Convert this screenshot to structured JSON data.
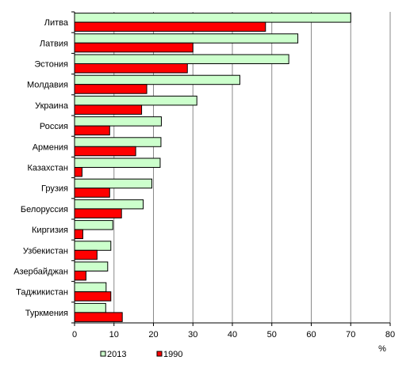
{
  "chart_data": {
    "type": "bar",
    "orientation": "horizontal",
    "categories": [
      "Литва",
      "Латвия",
      "Эстония",
      "Молдавия",
      "Украина",
      "Россия",
      "Армения",
      "Казахстан",
      "Грузия",
      "Белоруссия",
      "Киргизия",
      "Узбекистан",
      "Азербайджан",
      "Таджикистан",
      "Туркмения"
    ],
    "series": [
      {
        "name": "2013",
        "color": "#ccffcc",
        "values": [
          70,
          56.6,
          54.3,
          41.9,
          31,
          22,
          21.9,
          21.7,
          19.6,
          17.4,
          9.7,
          9.2,
          8.4,
          8,
          7.9
        ]
      },
      {
        "name": "1990",
        "color": "#ff0000",
        "values": [
          48.4,
          30,
          28.6,
          18.3,
          17,
          8.9,
          15.5,
          1.9,
          8.9,
          11.9,
          2.1,
          5.7,
          2.9,
          9.2,
          12.1
        ]
      }
    ],
    "xlim": [
      0,
      80
    ],
    "xticks": [
      "0",
      "10",
      "20",
      "30",
      "40",
      "50",
      "60",
      "70",
      "80"
    ],
    "xlabel": "%",
    "grid": "vertical",
    "legend": "bottom"
  }
}
